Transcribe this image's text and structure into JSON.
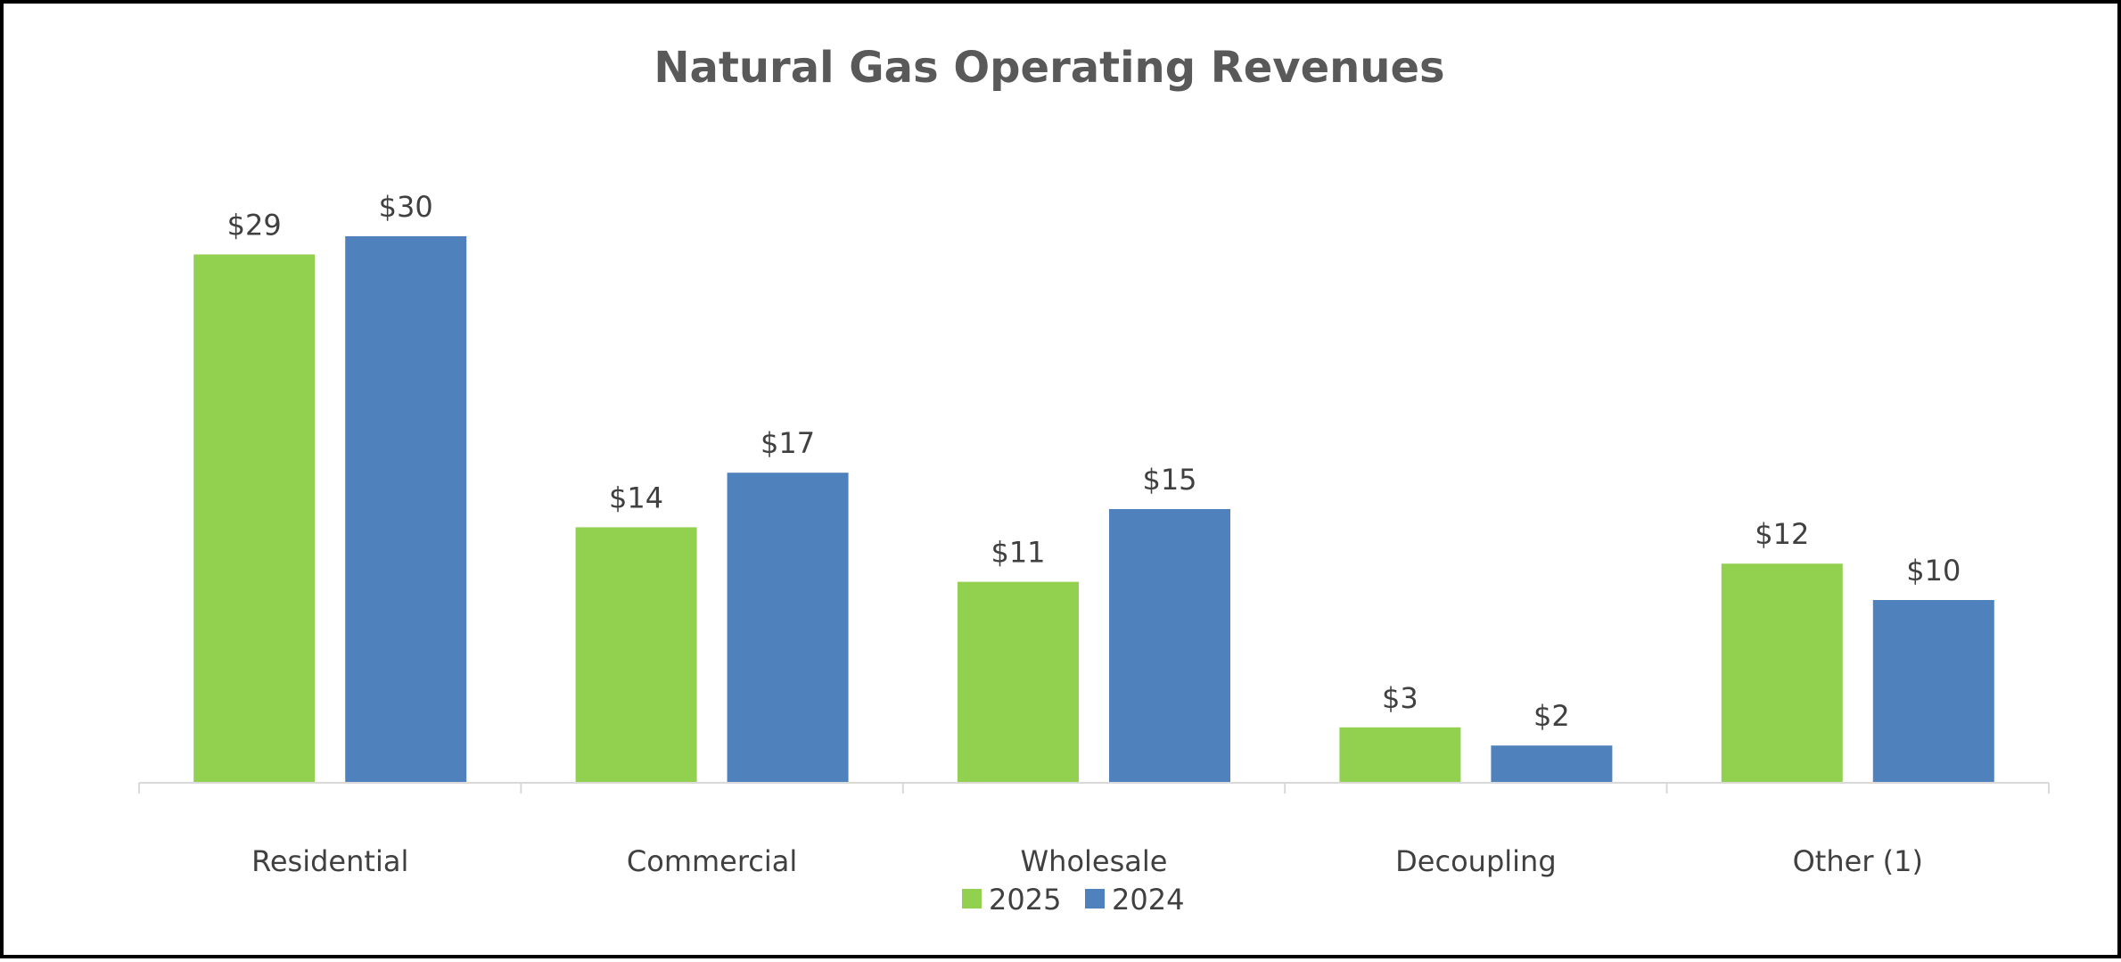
{
  "chart_data": {
    "type": "bar",
    "title": "Natural Gas Operating Revenues",
    "categories": [
      "Residential",
      "Commercial",
      "Wholesale",
      "Decoupling",
      "Other (1)"
    ],
    "series": [
      {
        "name": "2025",
        "color": "#92D050",
        "values": [
          29,
          14,
          11,
          3,
          12
        ],
        "labels": [
          "$29",
          "$14",
          "$11",
          "$3",
          "$12"
        ]
      },
      {
        "name": "2024",
        "color": "#4F81BD",
        "values": [
          30,
          17,
          15,
          2,
          10
        ],
        "labels": [
          "$30",
          "$17",
          "$15",
          "$2",
          "$10"
        ]
      }
    ],
    "xlabel": "",
    "ylabel": "",
    "ylim": [
      0,
      30
    ],
    "grid": false,
    "legend": "bottom-center",
    "axis_color": "#D9D9D9"
  }
}
